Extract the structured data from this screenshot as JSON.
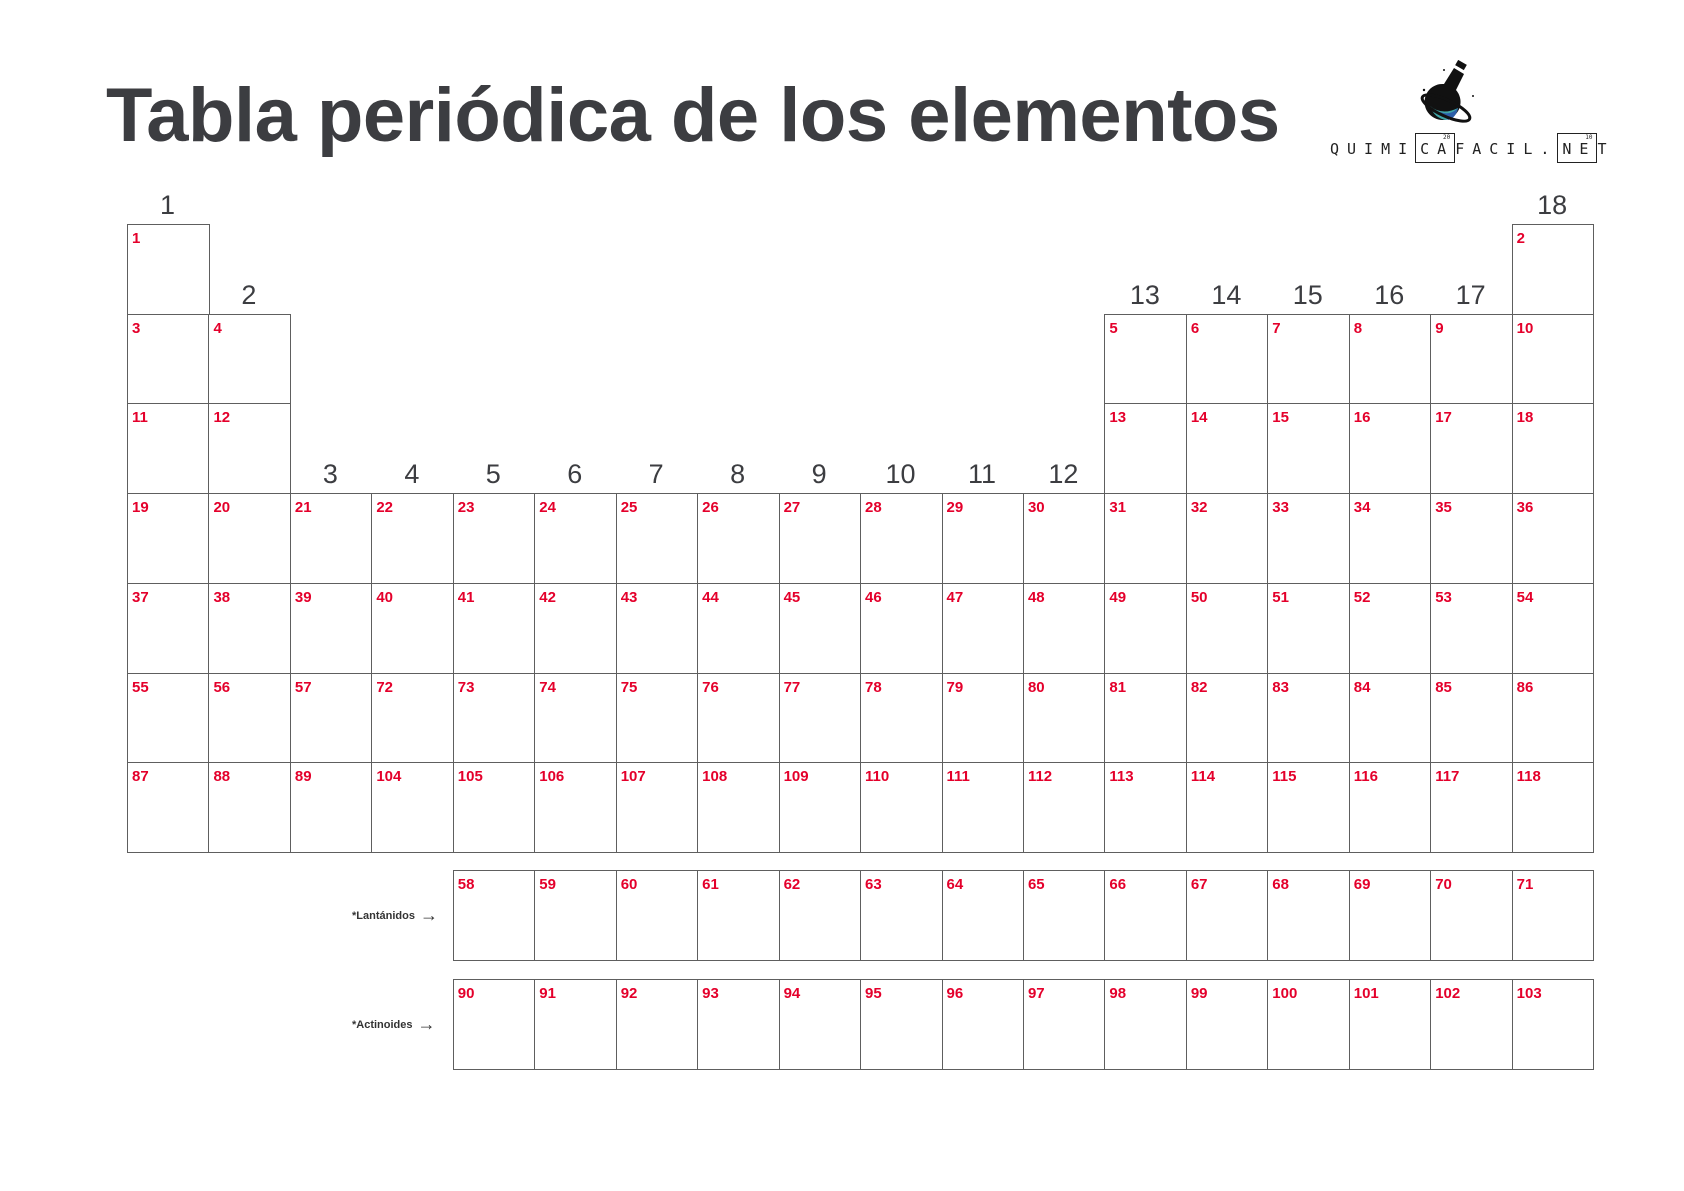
{
  "title": "Tabla periódica de los elementos",
  "logo": {
    "text_before": "QUIMI",
    "box1": "CA",
    "box1_num": "20",
    "text_mid": "FACIL.",
    "box2": "NE",
    "box2_num": "10",
    "text_after": "T"
  },
  "colors": {
    "number": "#e4002b",
    "text": "#3c3d41",
    "border": "#5e5e5e"
  },
  "groups": [
    "1",
    "2",
    "3",
    "4",
    "5",
    "6",
    "7",
    "8",
    "9",
    "10",
    "11",
    "12",
    "13",
    "14",
    "15",
    "16",
    "17",
    "18"
  ],
  "main_rows": [
    [
      1,
      null,
      null,
      null,
      null,
      null,
      null,
      null,
      null,
      null,
      null,
      null,
      null,
      null,
      null,
      null,
      null,
      2
    ],
    [
      3,
      4,
      null,
      null,
      null,
      null,
      null,
      null,
      null,
      null,
      null,
      null,
      5,
      6,
      7,
      8,
      9,
      10
    ],
    [
      11,
      12,
      null,
      null,
      null,
      null,
      null,
      null,
      null,
      null,
      null,
      null,
      13,
      14,
      15,
      16,
      17,
      18
    ],
    [
      19,
      20,
      21,
      22,
      23,
      24,
      25,
      26,
      27,
      28,
      29,
      30,
      31,
      32,
      33,
      34,
      35,
      36
    ],
    [
      37,
      38,
      39,
      40,
      41,
      42,
      43,
      44,
      45,
      46,
      47,
      48,
      49,
      50,
      51,
      52,
      53,
      54
    ],
    [
      55,
      56,
      57,
      72,
      73,
      74,
      75,
      76,
      77,
      78,
      79,
      80,
      81,
      82,
      83,
      84,
      85,
      86
    ],
    [
      87,
      88,
      89,
      104,
      105,
      106,
      107,
      108,
      109,
      110,
      111,
      112,
      113,
      114,
      115,
      116,
      117,
      118
    ]
  ],
  "lanthanides": {
    "label": "*Lantánidos",
    "numbers": [
      58,
      59,
      60,
      61,
      62,
      63,
      64,
      65,
      66,
      67,
      68,
      69,
      70,
      71
    ]
  },
  "actinides": {
    "label": "*Actinoides",
    "numbers": [
      90,
      91,
      92,
      93,
      94,
      95,
      96,
      97,
      98,
      99,
      100,
      101,
      102,
      103
    ]
  },
  "arrow_icon": "arrow-right-icon"
}
